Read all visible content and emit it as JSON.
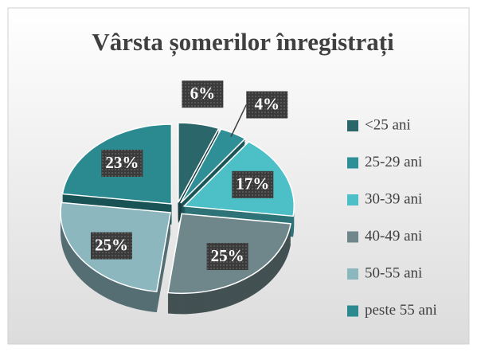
{
  "chart_data": {
    "type": "pie",
    "title": "Vârsta șomerilor înregistrați",
    "categories": [
      "<25 ani",
      "25-29 ani",
      "30-39 ani",
      "40-49 ani",
      "50-55 ani",
      "peste 55 ani"
    ],
    "values": [
      6,
      4,
      17,
      25,
      25,
      23
    ],
    "value_labels": [
      "6%",
      "4%",
      "17%",
      "25%",
      "25%",
      "23%"
    ],
    "colors": [
      "#2b666b",
      "#2f8f96",
      "#4cbfc7",
      "#6f878a",
      "#8db7bf",
      "#2a8a90"
    ],
    "legend": "right"
  }
}
